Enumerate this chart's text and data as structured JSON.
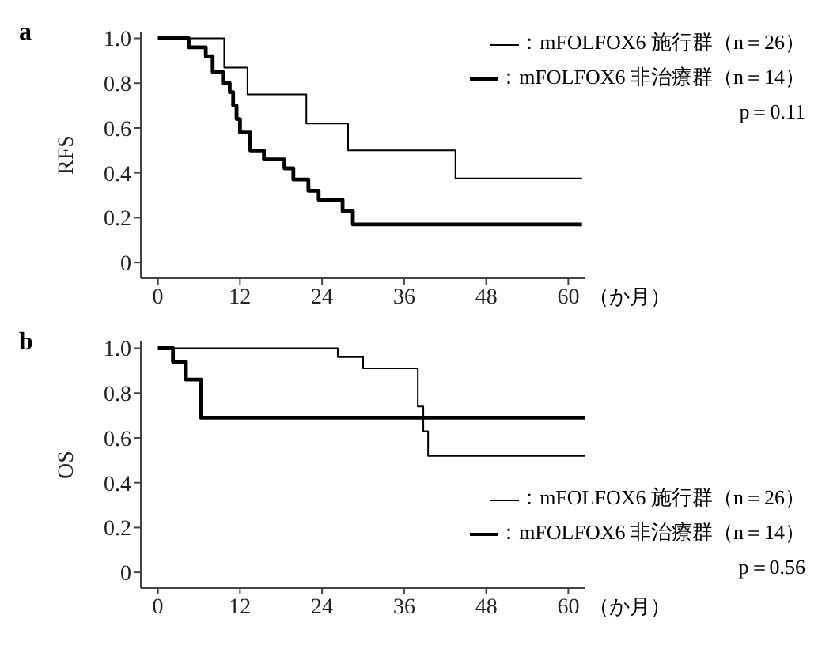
{
  "chart_data": [
    {
      "type": "step",
      "title": "a",
      "ylabel": "RFS",
      "xlabel": "（か月）",
      "legend": "top right",
      "annotations": [
        "p＝0.11"
      ],
      "xlim": [
        -2.5,
        62.5
      ],
      "xticks": [
        0,
        12,
        24,
        36,
        48,
        60
      ],
      "ylim": [
        -0.07,
        1.03
      ],
      "yticks": [
        0,
        0.2,
        0.4,
        0.6,
        0.8,
        {
          "value": 1,
          "label": "1.0"
        }
      ],
      "series": [
        {
          "name": "：mFOLFOX6 施行群（n＝26）",
          "color": "#000000",
          "x": [
            0,
            9.7,
            13.1,
            21.7,
            27.8,
            43.5,
            62
          ],
          "values": [
            1,
            0.87,
            0.75,
            0.62,
            0.5,
            0.375,
            0.375
          ]
        },
        {
          "name": "：mFOLFOX6 非治療群（n＝14）",
          "color": "#000000",
          "x": [
            0,
            4.5,
            7,
            8,
            9.5,
            10.5,
            11,
            11.5,
            12,
            13.5,
            15.5,
            18.5,
            19.8,
            22,
            23.5,
            27,
            28.5,
            62
          ],
          "values": [
            1,
            0.96,
            0.92,
            0.85,
            0.8,
            0.76,
            0.7,
            0.64,
            0.58,
            0.5,
            0.46,
            0.42,
            0.37,
            0.32,
            0.28,
            0.23,
            0.17,
            0.17
          ]
        }
      ]
    },
    {
      "type": "step",
      "title": "b",
      "ylabel": "OS",
      "xlabel": "（か月）",
      "legend": "bottom right",
      "annotations": [
        "p＝0.56"
      ],
      "xlim": [
        -2.5,
        62.5
      ],
      "xticks": [
        0,
        12,
        24,
        36,
        48,
        60
      ],
      "ylim": [
        -0.07,
        1.03
      ],
      "yticks": [
        0,
        0.2,
        0.4,
        0.6,
        0.8,
        {
          "value": 1,
          "label": "1.0"
        }
      ],
      "series": [
        {
          "name": "：mFOLFOX6 施行群（n＝26）",
          "color": "#000000",
          "x": [
            0,
            26.3,
            30,
            38,
            38.8,
            39.5,
            62.5
          ],
          "values": [
            1,
            0.96,
            0.91,
            0.74,
            0.63,
            0.52,
            0.52
          ]
        },
        {
          "name": "：mFOLFOX6 非治療群（n＝14）",
          "color": "#000000",
          "x": [
            0,
            2.2,
            4.1,
            6.3,
            62.5
          ],
          "values": [
            1,
            0.94,
            0.86,
            0.69,
            0.69
          ]
        }
      ]
    }
  ]
}
